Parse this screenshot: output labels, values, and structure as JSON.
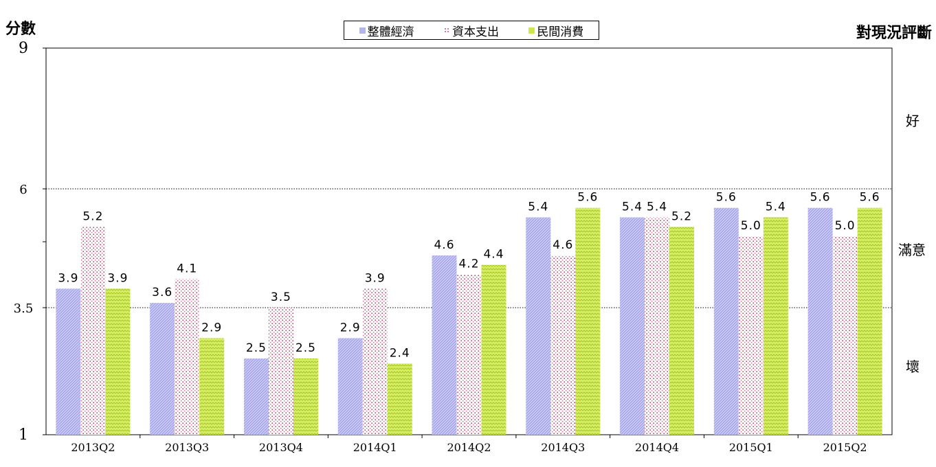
{
  "chart_data": {
    "type": "bar",
    "ylabel": "分數",
    "right_label": "對現況評斷",
    "right_categories": [
      "好",
      "滿意",
      "壞"
    ],
    "categories": [
      "2013Q2",
      "2013Q3",
      "2013Q4",
      "2014Q1",
      "2014Q2",
      "2014Q3",
      "2014Q4",
      "2015Q1",
      "2015Q2"
    ],
    "series": [
      {
        "name": "整體經濟",
        "values": [
          3.9,
          3.6,
          2.5,
          2.9,
          4.6,
          5.4,
          5.4,
          5.6,
          5.6
        ],
        "color": "#b3b3f0"
      },
      {
        "name": "資本支出",
        "values": [
          5.2,
          4.1,
          3.5,
          3.9,
          4.2,
          4.6,
          5.4,
          5.0,
          5.0
        ],
        "color": "#c0506e"
      },
      {
        "name": "民間消費",
        "values": [
          3.9,
          2.9,
          2.5,
          2.4,
          4.4,
          5.6,
          5.2,
          5.4,
          5.6
        ],
        "color": "#cce84a"
      }
    ],
    "yticks": [
      "1",
      "3.5",
      "6",
      "9"
    ],
    "ylim": [
      1,
      9
    ],
    "reference_lines": [
      3.5,
      6
    ]
  }
}
